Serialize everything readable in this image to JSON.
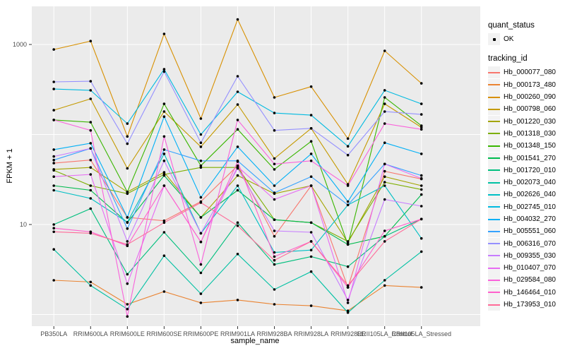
{
  "chart_data": {
    "type": "line",
    "title": "",
    "xlabel": "sample_name",
    "ylabel": "FPKM + 1",
    "y_scale": "log10",
    "y_ticks": [
      {
        "label": "1000",
        "value": 1000
      },
      {
        "label": "10",
        "value": 10
      }
    ],
    "y_gridlines": [
      1,
      10,
      100,
      1000
    ],
    "ylim": [
      0.69,
      2650
    ],
    "grid": true,
    "legend_position": "right",
    "panel_bg": "#EBEBEB",
    "grid_color": "#FFFFFF",
    "tick_color": "#333333",
    "tick_label_color": "#4D4D4D",
    "point_color": "#000000",
    "categories": [
      "PB350LA",
      "RRIM600LA",
      "RRIM600LE",
      "RRIM600SE",
      "RRIM600PE",
      "RRIM901LA",
      "RRIM928BA",
      "RRIM928LA",
      "RRIM928LE",
      "RRII105LA_Control",
      "RRII105LA_Stressed"
    ],
    "series": [
      {
        "name": "Hb_000077_080",
        "color": "#F8766D",
        "values": [
          48,
          52,
          12,
          11,
          18,
          45,
          7.4,
          27,
          2,
          39,
          32
        ]
      },
      {
        "name": "Hb_000173_480",
        "color": "#EA8331",
        "values": [
          2.4,
          2.3,
          1.3,
          1.8,
          1.35,
          1.45,
          1.3,
          1.25,
          1.1,
          2.1,
          2
        ]
      },
      {
        "name": "Hb_000260_090",
        "color": "#D89000",
        "values": [
          880,
          1090,
          95,
          1310,
          150,
          1900,
          258,
          340,
          90,
          850,
          370
        ]
      },
      {
        "name": "Hb_000798_060",
        "color": "#C49A00",
        "values": [
          186,
          249,
          42,
          180,
          73,
          215,
          54,
          117,
          28,
          219,
          120
        ]
      },
      {
        "name": "Hb_001220_030",
        "color": "#A3A500",
        "values": [
          41,
          43,
          23,
          38,
          12,
          35,
          22,
          27,
          6.3,
          34,
          27
        ]
      },
      {
        "name": "Hb_001318_030",
        "color": "#7CAE00",
        "values": [
          40,
          27,
          22,
          36,
          43,
          43,
          11.3,
          10.5,
          6.5,
          29.5,
          24.5
        ]
      },
      {
        "name": "Hb_001348_150",
        "color": "#39B600",
        "values": [
          145,
          137,
          23,
          219,
          45,
          114,
          41,
          84,
          6,
          258,
          125
        ]
      },
      {
        "name": "Hb_001541_270",
        "color": "#00BB4E",
        "values": [
          27,
          24,
          10.5,
          35,
          12,
          24,
          11.3,
          10.5,
          6,
          7.4,
          21.5
        ]
      },
      {
        "name": "Hb_001720_010",
        "color": "#00BF7D",
        "values": [
          10,
          15,
          2.8,
          8.2,
          2.9,
          10.5,
          3.6,
          4.4,
          3.4,
          7.4,
          11.5
        ]
      },
      {
        "name": "Hb_002073_040",
        "color": "#00C1A3",
        "values": [
          5.3,
          2.1,
          1.15,
          4.5,
          1.7,
          4.7,
          1.9,
          3,
          1.05,
          2.4,
          5
        ]
      },
      {
        "name": "Hb_002626_040",
        "color": "#00BFC4",
        "values": [
          24,
          19.5,
          10.6,
          61,
          8,
          27,
          4.9,
          5.2,
          16.5,
          27,
          7
        ]
      },
      {
        "name": "Hb_002745_010",
        "color": "#00BAE0",
        "values": [
          320,
          310,
          132,
          531,
          100,
          298,
          173,
          164,
          74,
          310,
          219
        ]
      },
      {
        "name": "Hb_004032_270",
        "color": "#00B0F6",
        "values": [
          68,
          80,
          12,
          158,
          20,
          73,
          27,
          61,
          18,
          81,
          61
        ]
      },
      {
        "name": "Hb_005551_060",
        "color": "#35A2FF",
        "values": [
          52,
          70,
          9,
          68,
          51,
          51,
          22.5,
          34,
          16.5,
          47,
          35
        ]
      },
      {
        "name": "Hb_006316_070",
        "color": "#9590FF",
        "values": [
          384,
          390,
          79,
          500,
          81,
          444,
          111,
          117,
          59,
          180,
          167
        ]
      },
      {
        "name": "Hb_009355_030",
        "color": "#C77CFF",
        "values": [
          57,
          70,
          6.5,
          51,
          8,
          42,
          8.5,
          8.2,
          1.45,
          19,
          16
        ]
      },
      {
        "name": "Hb_010407_070",
        "color": "#E76BF3",
        "values": [
          34,
          36,
          2.2,
          27,
          6.4,
          44,
          19,
          27,
          1.35,
          47,
          32.5
        ]
      },
      {
        "name": "Hb_029584_080",
        "color": "#FA62DB",
        "values": [
          145,
          111,
          0.95,
          95,
          3.6,
          145,
          47,
          51,
          27,
          132,
          114
        ]
      },
      {
        "name": "Hb_146464_010",
        "color": "#FF61CC",
        "values": [
          9.1,
          8.3,
          5.8,
          27,
          6.4,
          50,
          4.4,
          6.5,
          2,
          8.5,
          11.5
        ]
      },
      {
        "name": "Hb_173953_010",
        "color": "#FF6A98",
        "values": [
          8.3,
          8,
          6,
          10.5,
          17.5,
          9.7,
          4,
          6.5,
          2.1,
          6.5,
          11.5
        ]
      }
    ]
  },
  "legend": {
    "quant_status_title": "quant_status",
    "quant_status_items": [
      {
        "label": "OK"
      }
    ],
    "tracking_id_title": "tracking_id"
  }
}
